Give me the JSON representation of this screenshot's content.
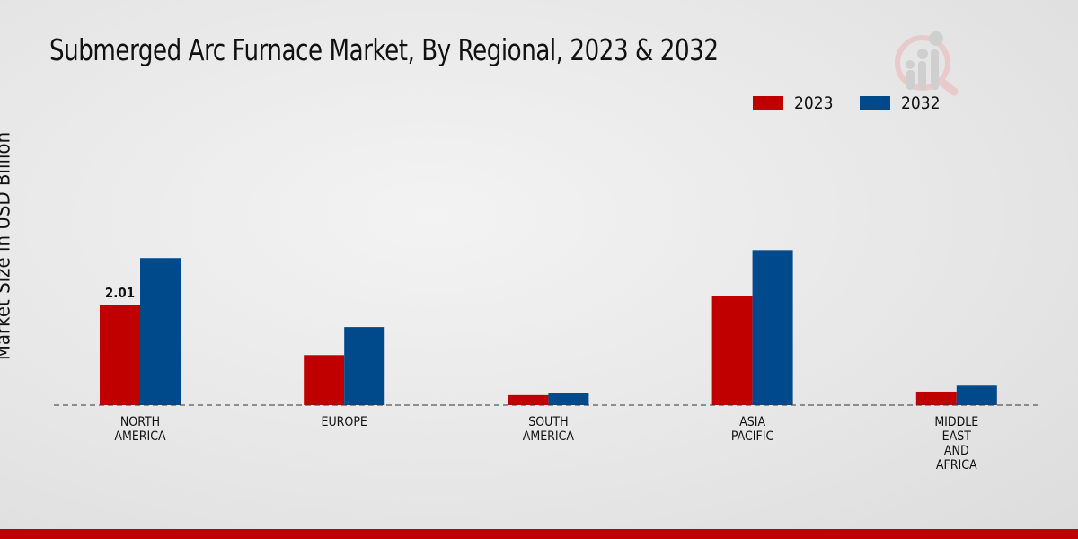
{
  "chart_data": {
    "type": "bar",
    "title": "Submerged Arc Furnace Market, By Regional, 2023 & 2032",
    "xlabel": "",
    "ylabel": "Market Size in USD Billion",
    "categories": [
      [
        "NORTH",
        "AMERICA"
      ],
      [
        "EUROPE"
      ],
      [
        "SOUTH",
        "AMERICA"
      ],
      [
        "ASIA",
        "PACIFIC"
      ],
      [
        "MIDDLE",
        "EAST",
        "AND",
        "AFRICA"
      ]
    ],
    "series": [
      {
        "name": "2023",
        "color": "#c00000",
        "values": [
          2.01,
          1.0,
          0.2,
          2.19,
          0.27
        ]
      },
      {
        "name": "2032",
        "color": "#004a8c",
        "values": [
          2.94,
          1.56,
          0.25,
          3.1,
          0.39
        ]
      }
    ],
    "data_labels": [
      {
        "series": 0,
        "index": 0,
        "text": "2.01"
      }
    ],
    "ylim": [
      0,
      3.8
    ],
    "grid": false,
    "legend_position": "top-right"
  },
  "logo": {
    "icon": "magnifier-bar-chart-logo"
  }
}
